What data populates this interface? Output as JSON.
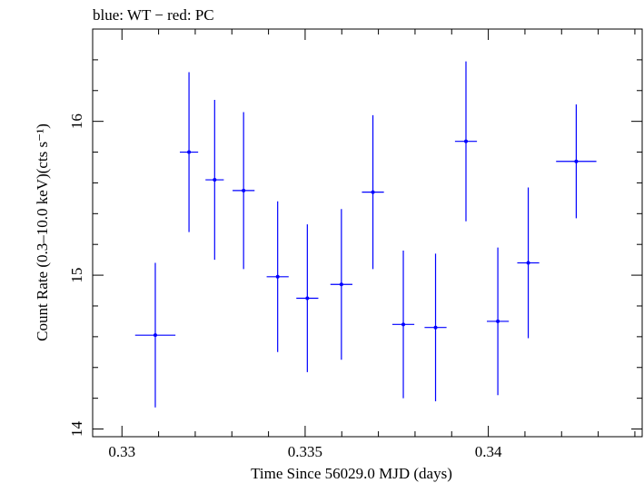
{
  "chart_data": {
    "type": "scatter",
    "title": "blue: WT − red: PC",
    "xlabel": "Time Since 56029.0 MJD (days)",
    "ylabel": "Count Rate (0.3–10.0 keV)(cts s⁻¹)",
    "xlim": [
      0.3292,
      0.3442
    ],
    "ylim": [
      13.95,
      16.6
    ],
    "xticks": [
      {
        "value": 0.33,
        "label": "0.33"
      },
      {
        "value": 0.335,
        "label": "0.335"
      },
      {
        "value": 0.34,
        "label": "0.34"
      }
    ],
    "yticks": [
      {
        "value": 14,
        "label": "14"
      },
      {
        "value": 15,
        "label": "15"
      },
      {
        "value": 16,
        "label": "16"
      }
    ],
    "grid": false,
    "series": [
      {
        "color": "#0000ff",
        "points": [
          {
            "x": 0.33091,
            "y": 14.61,
            "xerr": 0.00055,
            "yerr": 0.47
          },
          {
            "x": 0.33183,
            "y": 15.8,
            "xerr": 0.00025,
            "yerr": 0.52
          },
          {
            "x": 0.33253,
            "y": 15.62,
            "xerr": 0.00025,
            "yerr": 0.52
          },
          {
            "x": 0.33332,
            "y": 15.55,
            "xerr": 0.0003,
            "yerr": 0.51
          },
          {
            "x": 0.33425,
            "y": 14.99,
            "xerr": 0.0003,
            "yerr": 0.49
          },
          {
            "x": 0.33506,
            "y": 14.85,
            "xerr": 0.0003,
            "yerr": 0.48
          },
          {
            "x": 0.33599,
            "y": 14.94,
            "xerr": 0.0003,
            "yerr": 0.49
          },
          {
            "x": 0.33685,
            "y": 15.54,
            "xerr": 0.0003,
            "yerr": 0.5
          },
          {
            "x": 0.33768,
            "y": 14.68,
            "xerr": 0.0003,
            "yerr": 0.48
          },
          {
            "x": 0.33856,
            "y": 14.66,
            "xerr": 0.0003,
            "yerr": 0.48
          },
          {
            "x": 0.33939,
            "y": 15.87,
            "xerr": 0.0003,
            "yerr": 0.52
          },
          {
            "x": 0.34026,
            "y": 14.7,
            "xerr": 0.0003,
            "yerr": 0.48
          },
          {
            "x": 0.34109,
            "y": 15.08,
            "xerr": 0.0003,
            "yerr": 0.49
          },
          {
            "x": 0.3424,
            "y": 15.74,
            "xerr": 0.00055,
            "yerr": 0.37
          }
        ]
      }
    ]
  }
}
